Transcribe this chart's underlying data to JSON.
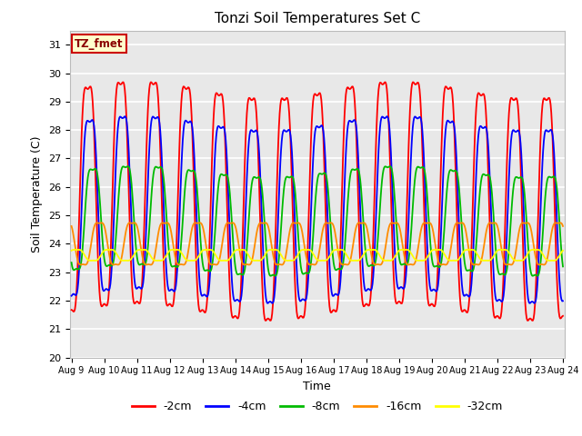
{
  "title": "Tonzi Soil Temperatures Set C",
  "xlabel": "Time",
  "ylabel": "Soil Temperature (C)",
  "ylim": [
    20.0,
    31.5
  ],
  "yticks": [
    20.0,
    21.0,
    22.0,
    23.0,
    24.0,
    25.0,
    26.0,
    27.0,
    28.0,
    29.0,
    30.0,
    31.0
  ],
  "xstart_day": 9,
  "xend_day": 24,
  "legend_labels": [
    "-2cm",
    "-4cm",
    "-8cm",
    "-16cm",
    "-32cm"
  ],
  "legend_colors": [
    "#FF0000",
    "#0000FF",
    "#00BB00",
    "#FF8C00",
    "#FFFF00"
  ],
  "annotation_text": "TZ_fmet",
  "annotation_bg": "#FFFFCC",
  "annotation_border": "#CC0000",
  "bg_color": "#E8E8E8",
  "grid_color": "#FFFFFF",
  "series_order": [
    "-2cm",
    "-4cm",
    "-8cm",
    "-16cm",
    "-32cm"
  ],
  "series": {
    "-2cm": {
      "color": "#FF0000",
      "mean": 25.5,
      "amp": 4.5,
      "phase_shift": 0.0,
      "phase_extra": 0.0,
      "linewidth": 1.3
    },
    "-4cm": {
      "color": "#0000FF",
      "mean": 25.2,
      "amp": 3.5,
      "phase_shift": 0.06,
      "phase_extra": 0.0,
      "linewidth": 1.3
    },
    "-8cm": {
      "color": "#00BB00",
      "mean": 24.8,
      "amp": 2.0,
      "phase_shift": 0.15,
      "phase_extra": 0.0,
      "linewidth": 1.3
    },
    "-16cm": {
      "color": "#FF8C00",
      "mean": 24.0,
      "amp": 0.85,
      "phase_shift": 0.35,
      "phase_extra": 0.0,
      "linewidth": 1.3
    },
    "-32cm": {
      "color": "#FFFF00",
      "mean": 23.6,
      "amp": 0.22,
      "phase_shift": 0.65,
      "phase_extra": 0.0,
      "linewidth": 1.3
    }
  }
}
